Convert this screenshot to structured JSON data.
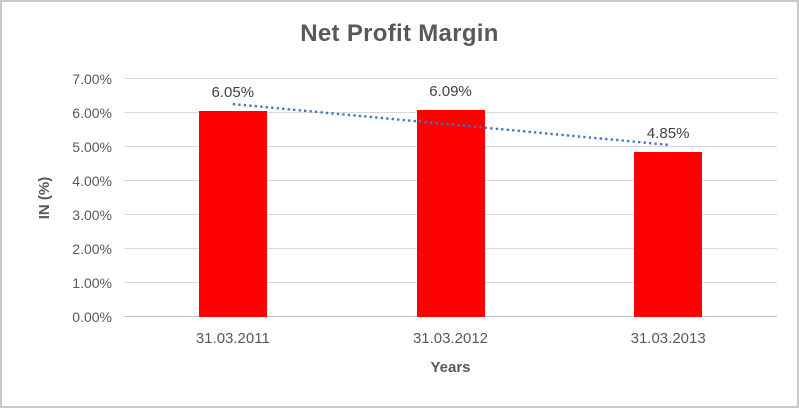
{
  "chart_data": {
    "type": "bar",
    "title": "Net Profit Margin",
    "xlabel": "Years",
    "ylabel": "IN (%)",
    "categories": [
      "31.03.2011",
      "31.03.2012",
      "31.03.2013"
    ],
    "values": [
      6.05,
      6.09,
      4.85
    ],
    "data_labels": [
      "6.05%",
      "6.09%",
      "4.85%"
    ],
    "y_ticks": [
      "0.00%",
      "1.00%",
      "2.00%",
      "3.00%",
      "4.00%",
      "5.00%",
      "6.00%",
      "7.00%"
    ],
    "ylim": [
      0,
      7
    ],
    "grid": true,
    "legend": "none",
    "bar_color": "#FF0000",
    "trendline": {
      "type": "linear",
      "style": "dotted",
      "color": "#4472C4"
    },
    "colors": {
      "title_text": "#595959",
      "axis_text": "#595959",
      "data_label_text": "#404040",
      "gridline": "#D9D9D9",
      "axis_line": "#BFBFBF",
      "border": "#C9C9C9"
    }
  }
}
